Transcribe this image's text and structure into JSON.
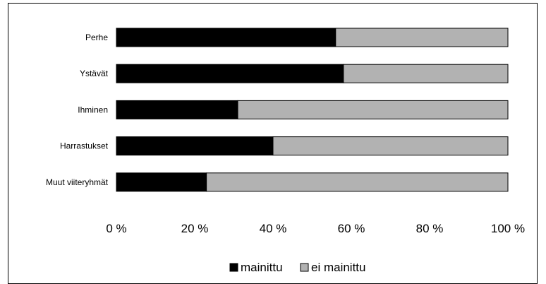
{
  "chart_data": {
    "type": "bar",
    "orientation": "horizontal",
    "stacked": "percent",
    "title": "",
    "xlabel": "",
    "ylabel": "",
    "categories": [
      "Perhe",
      "Ystävät",
      "Ihminen",
      "Harrastukset",
      "Muut viiteryhmät"
    ],
    "series": [
      {
        "name": "mainittu",
        "values": [
          56,
          58,
          31,
          40,
          23
        ],
        "color": "#000000"
      },
      {
        "name": "ei mainittu",
        "values": [
          44,
          42,
          69,
          60,
          77
        ],
        "color": "#b2b2b2"
      }
    ],
    "xlim": [
      0,
      100
    ],
    "xticks": [
      "0 %",
      "20 %",
      "40 %",
      "60 %",
      "80 %",
      "100 %"
    ],
    "grid": false,
    "legend_position": "bottom"
  }
}
